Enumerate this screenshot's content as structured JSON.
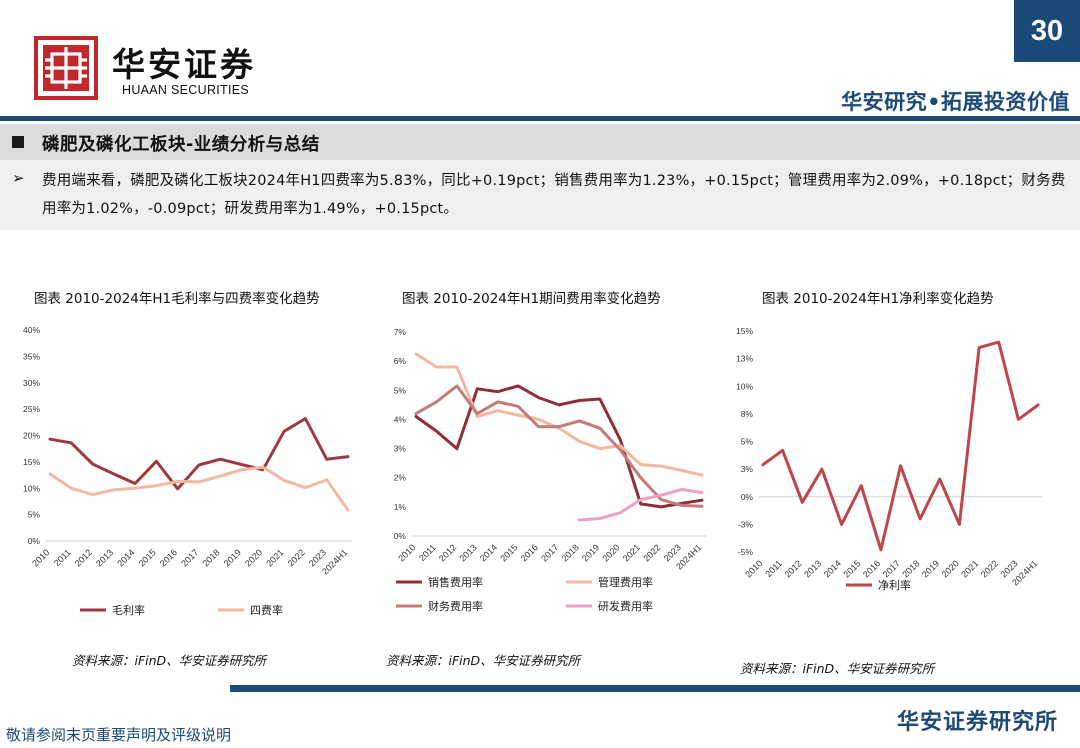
{
  "header": {
    "brand_cn": "华安证券",
    "brand_en": "HUAAN SECURITIES",
    "page_number": "30",
    "tagline": "华安研究•拓展投资价值",
    "brand_color": "#1c4a78",
    "logo_color": "#c0282d"
  },
  "section": {
    "title": "磷肥及磷化工板块-业绩分析与总结",
    "summary": "费用端来看，磷肥及磷化工板块2024年H1四费率为5.83%，同比+0.19pct；销售费用率为1.23%，+0.15pct；管理费用率为2.09%，+0.18pct；财务费用率为1.02%，-0.09pct；研发费用率为1.49%，+0.15pct。"
  },
  "footer": {
    "disclaimer": "敬请参阅末页重要声明及评级说明",
    "brand": "华安证券研究所"
  },
  "chart_data": [
    {
      "type": "line",
      "title": "图表 2010-2024年H1毛利率与四费率变化趋势",
      "source": "资料来源：iFinD、华安证券研究所",
      "categories": [
        "2010",
        "2011",
        "2012",
        "2013",
        "2014",
        "2015",
        "2016",
        "2017",
        "2018",
        "2019",
        "2020",
        "2021",
        "2022",
        "2023",
        "2024H1"
      ],
      "y_ticks": [
        "0%",
        "5%",
        "10%",
        "15%",
        "20%",
        "25%",
        "30%",
        "35%",
        "40%"
      ],
      "ylim": [
        0,
        40
      ],
      "grid": false,
      "legend_position": "bottom",
      "series": [
        {
          "name": "毛利率",
          "color": "#a0393f",
          "values": [
            19.3,
            18.6,
            14.6,
            12.7,
            10.9,
            15.1,
            9.9,
            14.4,
            15.5,
            14.5,
            13.5,
            20.8,
            23.2,
            15.5,
            16.0
          ]
        },
        {
          "name": "四费率",
          "color": "#f2b8a0",
          "values": [
            12.7,
            10.0,
            8.8,
            9.7,
            10.0,
            10.5,
            11.3,
            11.2,
            12.3,
            13.5,
            14.0,
            11.5,
            10.1,
            11.6,
            5.83
          ]
        }
      ]
    },
    {
      "type": "line",
      "title": "图表 2010-2024年H1期间费用率变化趋势",
      "source": "资料来源：iFinD、华安证券研究所",
      "categories": [
        "2010",
        "2011",
        "2012",
        "2013",
        "2014",
        "2015",
        "2016",
        "2017",
        "2018",
        "2019",
        "2020",
        "2021",
        "2022",
        "2023",
        "2024H1"
      ],
      "y_ticks": [
        "0%",
        "1%",
        "2%",
        "3%",
        "4%",
        "5%",
        "6%",
        "7%"
      ],
      "ylim": [
        0,
        7
      ],
      "grid": false,
      "legend_position": "bottom",
      "series": [
        {
          "name": "销售费用率",
          "color": "#8e2f35",
          "values": [
            4.1,
            3.6,
            3.0,
            5.05,
            4.95,
            5.15,
            4.75,
            4.5,
            4.65,
            4.7,
            3.3,
            1.1,
            1.0,
            1.12,
            1.23
          ]
        },
        {
          "name": "管理费用率",
          "color": "#f2b8a0",
          "values": [
            6.25,
            5.8,
            5.8,
            4.1,
            4.3,
            4.15,
            4.0,
            3.7,
            3.25,
            3.0,
            3.1,
            2.45,
            2.4,
            2.25,
            2.09
          ]
        },
        {
          "name": "财务费用率",
          "color": "#c47a78",
          "values": [
            4.2,
            4.6,
            5.15,
            4.2,
            4.6,
            4.45,
            3.75,
            3.75,
            3.95,
            3.7,
            2.95,
            2.0,
            1.25,
            1.05,
            1.02
          ]
        },
        {
          "name": "研发费用率",
          "color": "#ee9fc6",
          "values": [
            null,
            null,
            null,
            null,
            null,
            null,
            null,
            null,
            0.55,
            0.6,
            0.8,
            1.25,
            1.4,
            1.6,
            1.49
          ]
        }
      ]
    },
    {
      "type": "line",
      "title": "图表 2010-2024年H1净利率变化趋势",
      "source": "资料来源：iFinD、华安证券研究所",
      "categories": [
        "2010",
        "2011",
        "2012",
        "2013",
        "2014",
        "2015",
        "2016",
        "2017",
        "2018",
        "2019",
        "2020",
        "2021",
        "2022",
        "2023",
        "2024H1"
      ],
      "y_ticks": [
        "-5%",
        "-3%",
        "0%",
        "3%",
        "5%",
        "8%",
        "10%",
        "13%",
        "15%"
      ],
      "ylim": [
        -5,
        15
      ],
      "grid": false,
      "legend_position": "bottom",
      "series": [
        {
          "name": "净利率",
          "color": "#c0454a",
          "values": [
            2.9,
            4.2,
            -0.5,
            2.5,
            -2.5,
            1.0,
            -4.8,
            2.8,
            -2.0,
            1.6,
            -2.5,
            13.5,
            14.0,
            7.0,
            8.3
          ]
        }
      ]
    }
  ]
}
